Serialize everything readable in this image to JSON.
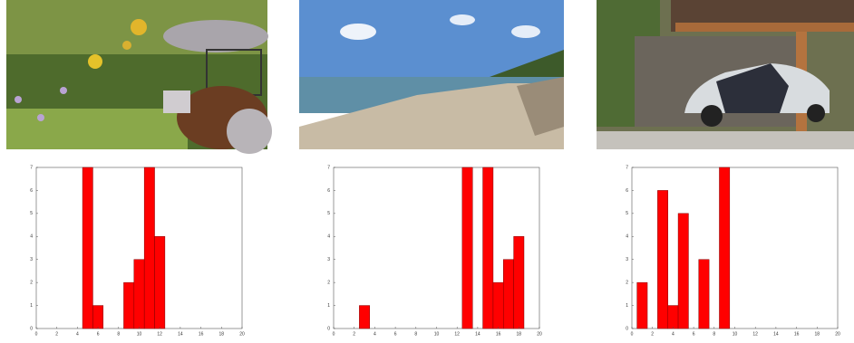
{
  "chart_data": [
    {
      "type": "bar",
      "x": [
        5,
        6,
        9,
        10,
        11,
        12
      ],
      "values": [
        7,
        1,
        2,
        3,
        7,
        4
      ],
      "color": "#ff0000",
      "xlim": [
        0,
        20
      ],
      "xticks": [
        0,
        2,
        4,
        6,
        8,
        10,
        12,
        14,
        16,
        18,
        20
      ],
      "ylim": [
        0,
        7
      ],
      "yticks": [
        0,
        1,
        2,
        3,
        4,
        5,
        6,
        7
      ]
    },
    {
      "type": "bar",
      "x": [
        3,
        13,
        15,
        16,
        17,
        18
      ],
      "values": [
        1,
        7,
        7,
        2,
        3,
        4
      ],
      "color": "#ff0000",
      "xlim": [
        0,
        20
      ],
      "xticks": [
        0,
        2,
        4,
        6,
        8,
        10,
        12,
        14,
        16,
        18,
        20
      ],
      "ylim": [
        0,
        7
      ],
      "yticks": [
        0,
        1,
        2,
        3,
        4,
        5,
        6,
        7
      ]
    },
    {
      "type": "bar",
      "x": [
        1,
        3,
        4,
        5,
        7,
        9
      ],
      "values": [
        2,
        6,
        1,
        5,
        3,
        7
      ],
      "color": "#ff0000",
      "xlim": [
        0,
        20
      ],
      "xticks": [
        0,
        2,
        4,
        6,
        8,
        10,
        12,
        14,
        16,
        18,
        20
      ],
      "ylim": [
        0,
        7
      ],
      "yticks": [
        0,
        1,
        2,
        3,
        4,
        5,
        6,
        7
      ]
    }
  ]
}
